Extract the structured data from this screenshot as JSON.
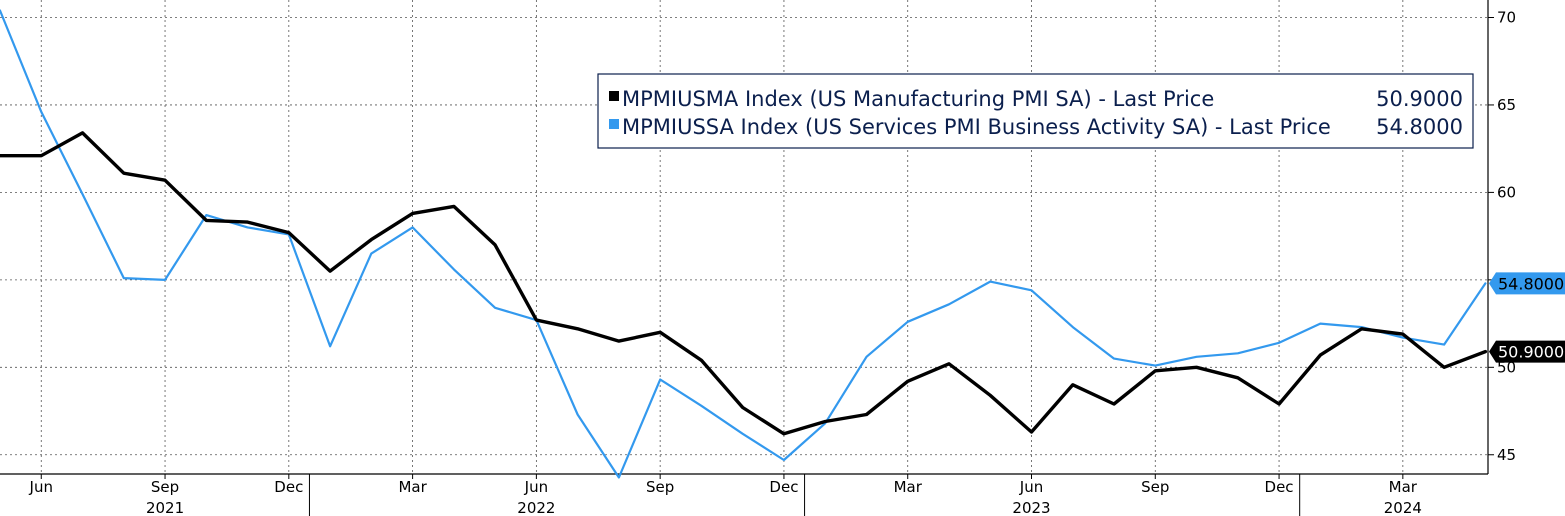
{
  "chart_data": {
    "type": "line",
    "x_axis": {
      "month_ticks": [
        {
          "date": "2021-06",
          "label": "Jun"
        },
        {
          "date": "2021-09",
          "label": "Sep"
        },
        {
          "date": "2021-12",
          "label": "Dec"
        },
        {
          "date": "2022-03",
          "label": "Mar"
        },
        {
          "date": "2022-06",
          "label": "Jun"
        },
        {
          "date": "2022-09",
          "label": "Sep"
        },
        {
          "date": "2022-12",
          "label": "Dec"
        },
        {
          "date": "2023-03",
          "label": "Mar"
        },
        {
          "date": "2023-06",
          "label": "Jun"
        },
        {
          "date": "2023-09",
          "label": "Sep"
        },
        {
          "date": "2023-12",
          "label": "Dec"
        },
        {
          "date": "2024-03",
          "label": "Mar"
        }
      ],
      "year_labels": [
        {
          "date": "2021-09",
          "label": "2021"
        },
        {
          "date": "2022-06",
          "label": "2022"
        },
        {
          "date": "2023-06",
          "label": "2023"
        },
        {
          "date": "2024-03",
          "label": "2024"
        }
      ],
      "year_boundaries": [
        "2022-01",
        "2023-01",
        "2024-01"
      ],
      "range": [
        "2021-05",
        "2024-05"
      ]
    },
    "y_axis": {
      "position": "right",
      "ticks": [
        45,
        50,
        55,
        60,
        65,
        70
      ],
      "tick_labels": [
        "45",
        "50",
        "",
        "60",
        "65",
        "70"
      ],
      "range": [
        43.9,
        71.0
      ]
    },
    "grid": true,
    "legend_position": "top-right",
    "series": [
      {
        "name": "MPMIUSMA Index (US Manufacturing PMI SA) - Last Price",
        "last_value": "50.9000",
        "color": "#000000",
        "x": [
          "2021-05",
          "2021-06",
          "2021-07",
          "2021-08",
          "2021-09",
          "2021-10",
          "2021-11",
          "2021-12",
          "2022-01",
          "2022-02",
          "2022-03",
          "2022-04",
          "2022-05",
          "2022-06",
          "2022-07",
          "2022-08",
          "2022-09",
          "2022-10",
          "2022-11",
          "2022-12",
          "2023-01",
          "2023-02",
          "2023-03",
          "2023-04",
          "2023-05",
          "2023-06",
          "2023-07",
          "2023-08",
          "2023-09",
          "2023-10",
          "2023-11",
          "2023-12",
          "2024-01",
          "2024-02",
          "2024-03",
          "2024-04",
          "2024-05"
        ],
        "values": [
          62.1,
          62.1,
          63.4,
          61.1,
          60.7,
          58.4,
          58.3,
          57.7,
          55.5,
          57.3,
          58.8,
          59.2,
          57.0,
          52.7,
          52.2,
          51.5,
          52.0,
          50.4,
          47.7,
          46.2,
          46.9,
          47.3,
          49.2,
          50.2,
          48.4,
          46.3,
          49.0,
          47.9,
          49.8,
          50.0,
          49.4,
          47.9,
          50.7,
          52.2,
          51.9,
          50.0,
          50.9
        ]
      },
      {
        "name": "MPMIUSSA Index (US Services PMI Business Activity SA) - Last Price",
        "last_value": "54.8000",
        "color": "#3399ee",
        "x": [
          "2021-05",
          "2021-06",
          "2021-07",
          "2021-08",
          "2021-09",
          "2021-10",
          "2021-11",
          "2021-12",
          "2022-01",
          "2022-02",
          "2022-03",
          "2022-04",
          "2022-05",
          "2022-06",
          "2022-07",
          "2022-08",
          "2022-09",
          "2022-10",
          "2022-11",
          "2022-12",
          "2023-01",
          "2023-02",
          "2023-03",
          "2023-04",
          "2023-05",
          "2023-06",
          "2023-07",
          "2023-08",
          "2023-09",
          "2023-10",
          "2023-11",
          "2023-12",
          "2024-01",
          "2024-02",
          "2024-03",
          "2024-04",
          "2024-05"
        ],
        "values": [
          70.4,
          64.6,
          59.9,
          55.1,
          55.0,
          58.7,
          58.0,
          57.6,
          51.2,
          56.5,
          58.0,
          55.6,
          53.4,
          52.7,
          47.3,
          43.7,
          49.3,
          47.8,
          46.2,
          44.7,
          46.8,
          50.6,
          52.6,
          53.6,
          54.9,
          54.4,
          52.3,
          50.5,
          50.1,
          50.6,
          50.8,
          51.4,
          52.5,
          52.3,
          51.7,
          51.3,
          54.8
        ]
      }
    ]
  }
}
